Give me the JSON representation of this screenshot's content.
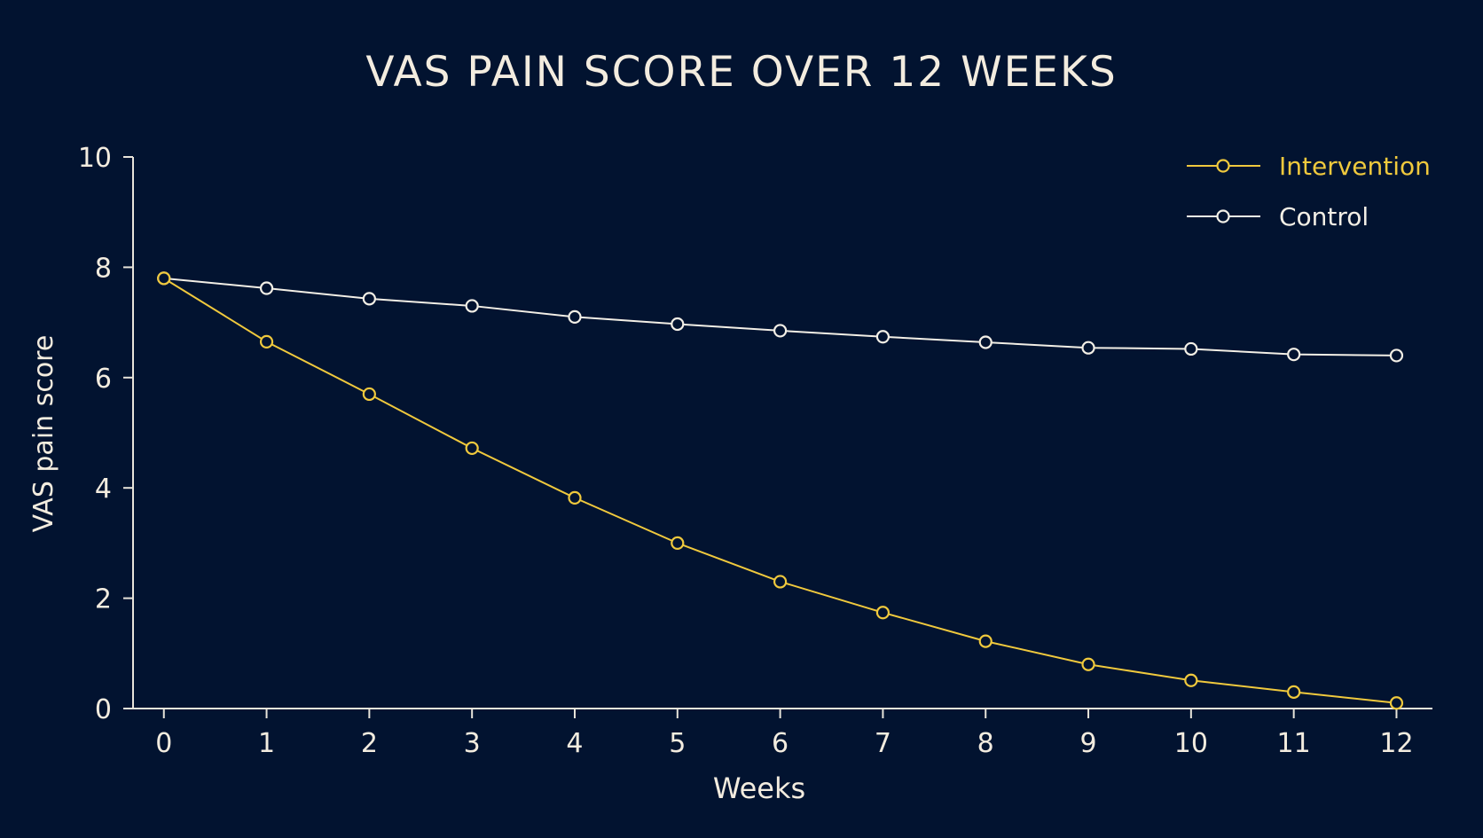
{
  "colors": {
    "background": "#021330",
    "text": "#f3ecdf",
    "axis": "#e8e4da",
    "intervention": "#f0c93d",
    "control": "#f3efe6"
  },
  "chart_data": {
    "type": "line",
    "title": "VAS PAIN SCORE OVER 12 WEEKS",
    "xlabel": "Weeks",
    "ylabel": "VAS pain score",
    "x": [
      0,
      1,
      2,
      3,
      4,
      5,
      6,
      7,
      8,
      9,
      10,
      11,
      12
    ],
    "xlim": [
      -0.3,
      12.35
    ],
    "ylim": [
      0,
      10
    ],
    "xticks": [
      "0",
      "1",
      "2",
      "3",
      "4",
      "5",
      "6",
      "7",
      "8",
      "9",
      "10",
      "11",
      "12"
    ],
    "yticks": [
      "0",
      "2",
      "4",
      "6",
      "8",
      "10"
    ],
    "grid": false,
    "legend_position": "top-right",
    "series": [
      {
        "name": "Intervention",
        "color": "#f0c93d",
        "values": [
          7.8,
          6.65,
          5.7,
          4.72,
          3.82,
          3.0,
          2.3,
          1.74,
          1.22,
          0.8,
          0.51,
          0.3,
          0.1
        ]
      },
      {
        "name": "Control",
        "color": "#f3efe6",
        "values": [
          7.8,
          7.62,
          7.43,
          7.3,
          7.1,
          6.97,
          6.85,
          6.74,
          6.64,
          6.54,
          6.52,
          6.42,
          6.4
        ]
      }
    ]
  }
}
